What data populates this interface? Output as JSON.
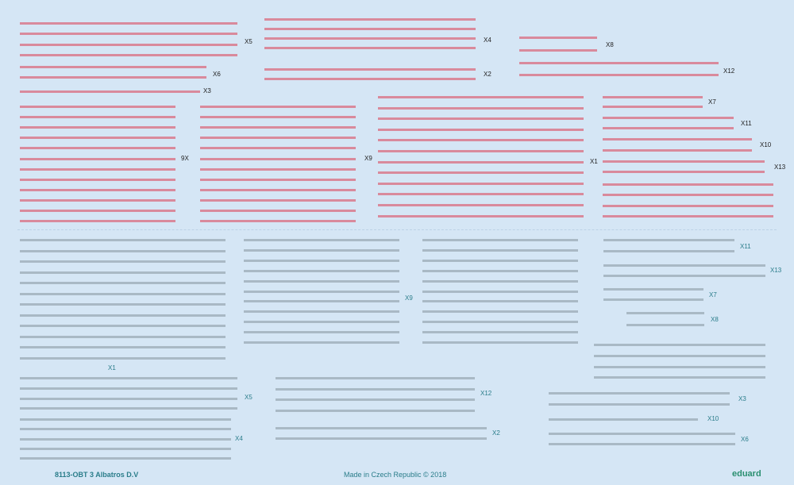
{
  "colors": {
    "background": "#d5e6f5",
    "upper_strip": "#d98a9c",
    "lower_strip": "#a9b9c5",
    "label_dark": "#1f1f1f",
    "label_teal": "#2a7d8a",
    "brand_green": "#2a8f70"
  },
  "upper_labels": [
    "X5",
    "X6",
    "X3",
    "X4",
    "X2",
    "X8",
    "X12",
    "9X",
    "X9",
    "X1",
    "X7",
    "X11",
    "X10",
    "X13"
  ],
  "lower_labels": [
    "X1",
    "X9",
    "X11",
    "X13",
    "X7",
    "X8",
    "X5",
    "X4",
    "X12",
    "X2",
    "X3",
    "X10",
    "X6"
  ],
  "footer": {
    "code": "8113-OBT 3   Albatros   D.V",
    "made_in": "Made in Czech Republic   ©   2018",
    "brand": "eduard"
  }
}
